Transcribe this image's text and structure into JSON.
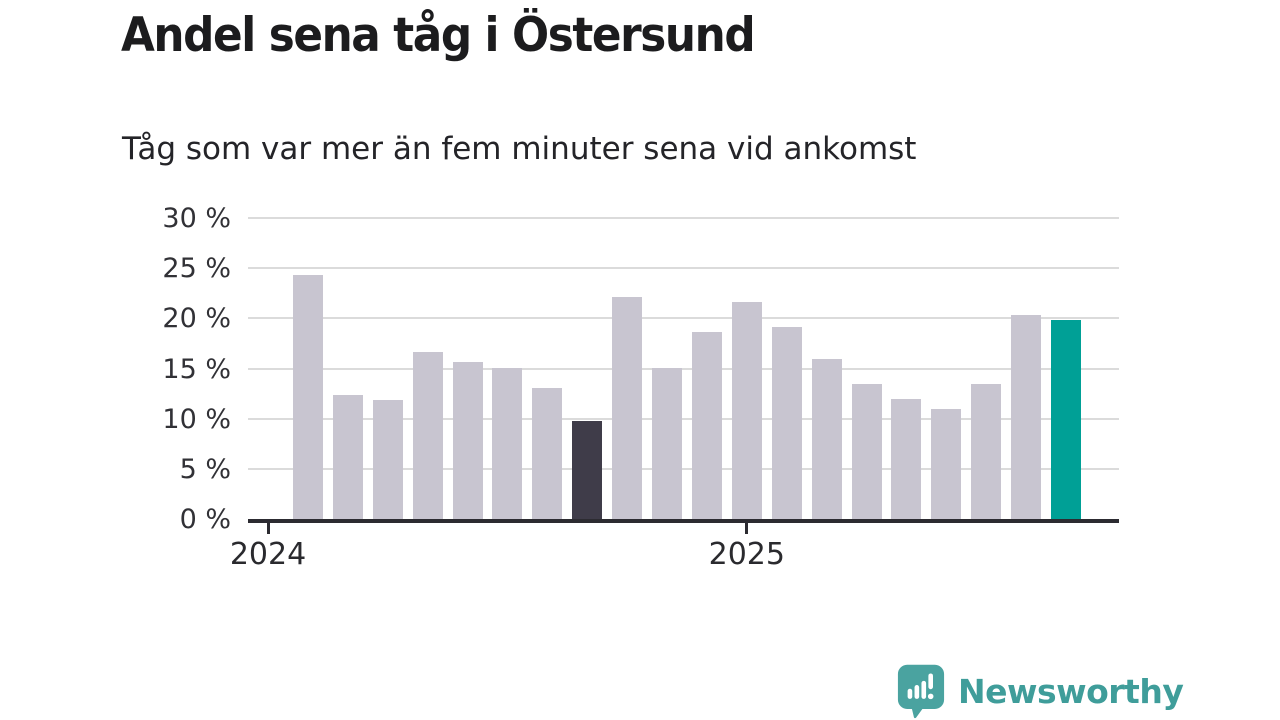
{
  "header": {
    "title": "Andel sena tåg i Östersund",
    "subtitle": "Tåg som var mer än fem minuter sena vid ankomst"
  },
  "chart_data": {
    "type": "bar",
    "title": "Andel sena tåg i Östersund",
    "subtitle": "Tåg som var mer än fem minuter sena vid ankomst",
    "unit": "%",
    "ylim": [
      0,
      30
    ],
    "grid": true,
    "y_ticks": [
      {
        "value": 30,
        "label": "30 %"
      },
      {
        "value": 25,
        "label": "25 %"
      },
      {
        "value": 20,
        "label": "20 %"
      },
      {
        "value": 15,
        "label": "15 %"
      },
      {
        "value": 10,
        "label": "10 %"
      },
      {
        "value": 5,
        "label": "5 %"
      },
      {
        "value": 0,
        "label": "0 %"
      }
    ],
    "x_ticks": [
      {
        "label": "2024",
        "slot": 0
      },
      {
        "label": "2025",
        "slot": 12
      }
    ],
    "bars_start_slot": 1,
    "values": [
      24.3,
      12.4,
      11.9,
      16.6,
      15.6,
      15.1,
      13.1,
      9.8,
      22.1,
      15.1,
      18.6,
      21.6,
      19.1,
      15.9,
      13.5,
      12.0,
      11.0,
      13.5,
      20.3,
      19.8
    ],
    "bar_roles": [
      "default",
      "default",
      "default",
      "default",
      "default",
      "default",
      "default",
      "dark",
      "default",
      "default",
      "default",
      "default",
      "default",
      "default",
      "default",
      "default",
      "default",
      "default",
      "default",
      "highlight"
    ]
  },
  "colors": {
    "bar_default": "#c8c5d0",
    "bar_dark": "#3f3c49",
    "bar_highlight": "#00a096",
    "gridline": "#dbdbdb",
    "axis": "#2c2b31",
    "title_text": "#1c1c1e",
    "subtitle_text": "#242428",
    "tick_text": "#313136",
    "brand": "#3f9d9a",
    "brand_bubble": "#4aa3a0"
  },
  "icons": {
    "brand": "newsworthy-logo-icon"
  },
  "footer": {
    "brand_name": "Newsworthy"
  }
}
